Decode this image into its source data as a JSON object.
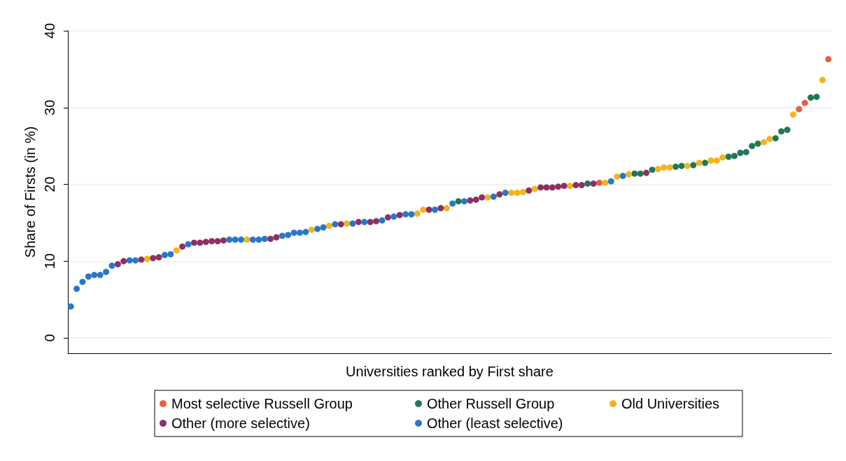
{
  "chart_data": {
    "type": "scatter",
    "xlabel": "Universities ranked by First share",
    "ylabel": "Share of Firsts (in %)",
    "categories": [
      null,
      null,
      null,
      null,
      null,
      null,
      null,
      null,
      null,
      null,
      null,
      null,
      null,
      null,
      null,
      null,
      null,
      null,
      null,
      null,
      null,
      null,
      null,
      null,
      null,
      null,
      null,
      null,
      null,
      null,
      null,
      null,
      null,
      null,
      null,
      null,
      null,
      null,
      null,
      null,
      null,
      null,
      null,
      null,
      null,
      null,
      null,
      null,
      null,
      null,
      null,
      null,
      null,
      null,
      null,
      null,
      null,
      null,
      null,
      null,
      null,
      null,
      null,
      null,
      null,
      null,
      null,
      null,
      null,
      null,
      null,
      null,
      null,
      null,
      null,
      null,
      null,
      null,
      null,
      null,
      null,
      null,
      null,
      null,
      null,
      null,
      null,
      null,
      null,
      null,
      null,
      null,
      null,
      null,
      null,
      null,
      null,
      null,
      null,
      null,
      null,
      null,
      null,
      null,
      null,
      null,
      null,
      null,
      null,
      null,
      null,
      null,
      null,
      null,
      null,
      null,
      null,
      null,
      null,
      null,
      null,
      null,
      null,
      null,
      null,
      null,
      null,
      null,
      null,
      null
    ],
    "series": [
      {
        "name": "Most selective Russell Group",
        "color": "#ec5c3f",
        "values": [
          null,
          null,
          null,
          null,
          null,
          null,
          null,
          null,
          null,
          null,
          null,
          null,
          null,
          null,
          null,
          null,
          null,
          null,
          null,
          null,
          null,
          null,
          null,
          null,
          null,
          null,
          null,
          null,
          null,
          null,
          null,
          null,
          null,
          null,
          null,
          null,
          null,
          null,
          null,
          null,
          null,
          null,
          null,
          null,
          null,
          null,
          null,
          null,
          null,
          null,
          null,
          null,
          null,
          null,
          null,
          null,
          null,
          null,
          null,
          null,
          null,
          null,
          null,
          null,
          null,
          null,
          null,
          null,
          null,
          null,
          null,
          null,
          null,
          null,
          null,
          null,
          null,
          null,
          null,
          null,
          null,
          null,
          null,
          null,
          null,
          null,
          null,
          null,
          null,
          null,
          20.2,
          null,
          null,
          null,
          null,
          null,
          null,
          null,
          null,
          null,
          null,
          null,
          null,
          null,
          null,
          null,
          null,
          null,
          null,
          null,
          null,
          null,
          null,
          null,
          null,
          null,
          null,
          null,
          null,
          null,
          null,
          null,
          null,
          null,
          29.8,
          30.6,
          null,
          null,
          null,
          36.3
        ]
      },
      {
        "name": "Other Russell Group",
        "color": "#1f7856",
        "values": [
          null,
          null,
          null,
          null,
          null,
          null,
          null,
          null,
          null,
          null,
          null,
          null,
          null,
          null,
          null,
          null,
          null,
          null,
          null,
          null,
          null,
          null,
          null,
          null,
          null,
          null,
          null,
          null,
          null,
          null,
          null,
          null,
          null,
          null,
          null,
          null,
          null,
          null,
          null,
          null,
          null,
          null,
          null,
          null,
          null,
          null,
          null,
          null,
          null,
          null,
          null,
          null,
          null,
          null,
          null,
          null,
          null,
          null,
          null,
          null,
          null,
          null,
          null,
          null,
          null,
          null,
          17.8,
          null,
          null,
          null,
          null,
          null,
          null,
          null,
          null,
          null,
          null,
          null,
          null,
          null,
          null,
          null,
          null,
          null,
          null,
          null,
          null,
          null,
          20.1,
          null,
          null,
          null,
          null,
          null,
          null,
          null,
          21.4,
          21.4,
          null,
          21.9,
          null,
          null,
          null,
          22.3,
          22.4,
          null,
          22.5,
          null,
          22.8,
          null,
          null,
          null,
          23.6,
          23.7,
          24.1,
          24.2,
          25.0,
          25.3,
          null,
          null,
          26.0,
          26.9,
          27.1,
          null,
          null,
          null,
          31.3,
          31.4,
          null,
          null
        ]
      },
      {
        "name": "Old Universities",
        "color": "#f3b41d",
        "values": [
          null,
          null,
          null,
          null,
          null,
          null,
          null,
          null,
          null,
          null,
          null,
          null,
          null,
          10.3,
          null,
          null,
          null,
          null,
          11.4,
          null,
          null,
          null,
          null,
          null,
          null,
          null,
          null,
          null,
          null,
          null,
          12.8,
          null,
          null,
          null,
          null,
          null,
          null,
          null,
          null,
          null,
          null,
          14.1,
          null,
          null,
          14.6,
          null,
          null,
          14.9,
          null,
          null,
          null,
          null,
          null,
          null,
          null,
          null,
          null,
          null,
          null,
          16.2,
          16.7,
          null,
          null,
          null,
          16.9,
          null,
          null,
          null,
          null,
          null,
          null,
          18.3,
          null,
          null,
          null,
          18.9,
          18.9,
          19.0,
          null,
          19.4,
          null,
          null,
          null,
          null,
          null,
          19.8,
          null,
          null,
          null,
          null,
          null,
          20.2,
          null,
          21.0,
          null,
          21.3,
          null,
          null,
          null,
          null,
          22.0,
          22.2,
          22.2,
          null,
          null,
          22.4,
          null,
          22.8,
          null,
          23.1,
          23.1,
          23.5,
          null,
          null,
          null,
          null,
          null,
          null,
          25.5,
          25.9,
          null,
          null,
          null,
          29.1,
          null,
          null,
          null,
          null,
          33.6,
          null
        ]
      },
      {
        "name": "Other (more selective)",
        "color": "#8c3163",
        "values": [
          null,
          null,
          null,
          null,
          null,
          null,
          null,
          null,
          9.6,
          10.0,
          null,
          null,
          10.2,
          null,
          10.4,
          10.5,
          null,
          null,
          null,
          11.9,
          null,
          12.4,
          12.4,
          12.5,
          12.6,
          12.6,
          12.7,
          null,
          null,
          null,
          null,
          null,
          null,
          null,
          12.9,
          13.1,
          null,
          null,
          null,
          null,
          null,
          null,
          null,
          null,
          null,
          null,
          14.8,
          null,
          null,
          15.1,
          null,
          15.1,
          15.2,
          null,
          15.7,
          null,
          16.0,
          null,
          null,
          null,
          null,
          16.7,
          null,
          16.9,
          null,
          null,
          null,
          null,
          17.9,
          18.0,
          18.3,
          null,
          null,
          18.7,
          null,
          null,
          null,
          null,
          19.2,
          null,
          19.6,
          19.6,
          19.6,
          19.7,
          19.8,
          null,
          19.9,
          19.9,
          null,
          20.1,
          null,
          null,
          null,
          null,
          null,
          null,
          null,
          null,
          21.5,
          null,
          null,
          null,
          null,
          null,
          null,
          null,
          null,
          null,
          null,
          null,
          null,
          null,
          null,
          null,
          null,
          null,
          null,
          null,
          null,
          null,
          null,
          null,
          null,
          null,
          null,
          null,
          null,
          null,
          null,
          null
        ]
      },
      {
        "name": "Other (least selective)",
        "color": "#2878c9",
        "values": [
          4.1,
          6.4,
          7.3,
          8.0,
          8.2,
          8.2,
          8.6,
          9.4,
          null,
          null,
          10.1,
          10.1,
          null,
          null,
          null,
          null,
          10.8,
          10.9,
          null,
          null,
          12.2,
          null,
          null,
          null,
          null,
          null,
          null,
          12.8,
          12.8,
          12.8,
          null,
          12.8,
          12.8,
          12.9,
          null,
          null,
          13.3,
          13.4,
          13.7,
          13.7,
          13.8,
          null,
          14.2,
          14.4,
          null,
          14.8,
          null,
          null,
          14.9,
          null,
          15.1,
          null,
          null,
          15.3,
          null,
          15.8,
          null,
          16.1,
          16.1,
          null,
          null,
          null,
          16.7,
          null,
          null,
          17.5,
          null,
          17.8,
          null,
          null,
          null,
          null,
          18.4,
          null,
          18.9,
          null,
          null,
          null,
          null,
          null,
          null,
          null,
          null,
          null,
          null,
          null,
          null,
          null,
          null,
          null,
          null,
          null,
          20.4,
          null,
          21.1,
          null,
          null,
          null,
          null,
          null,
          null,
          null,
          null,
          null,
          null,
          null,
          null,
          null,
          null,
          null,
          null,
          null,
          null,
          null,
          null,
          null,
          null,
          null,
          null,
          null,
          null,
          null,
          null,
          null,
          null,
          null,
          null,
          null,
          null,
          null
        ]
      }
    ],
    "ylim": [
      -2,
      40
    ],
    "yticks": [
      0,
      10,
      20,
      30,
      40
    ],
    "grid": "y",
    "legend": "bottom",
    "tick_labels": "y",
    "marker": "circle"
  }
}
